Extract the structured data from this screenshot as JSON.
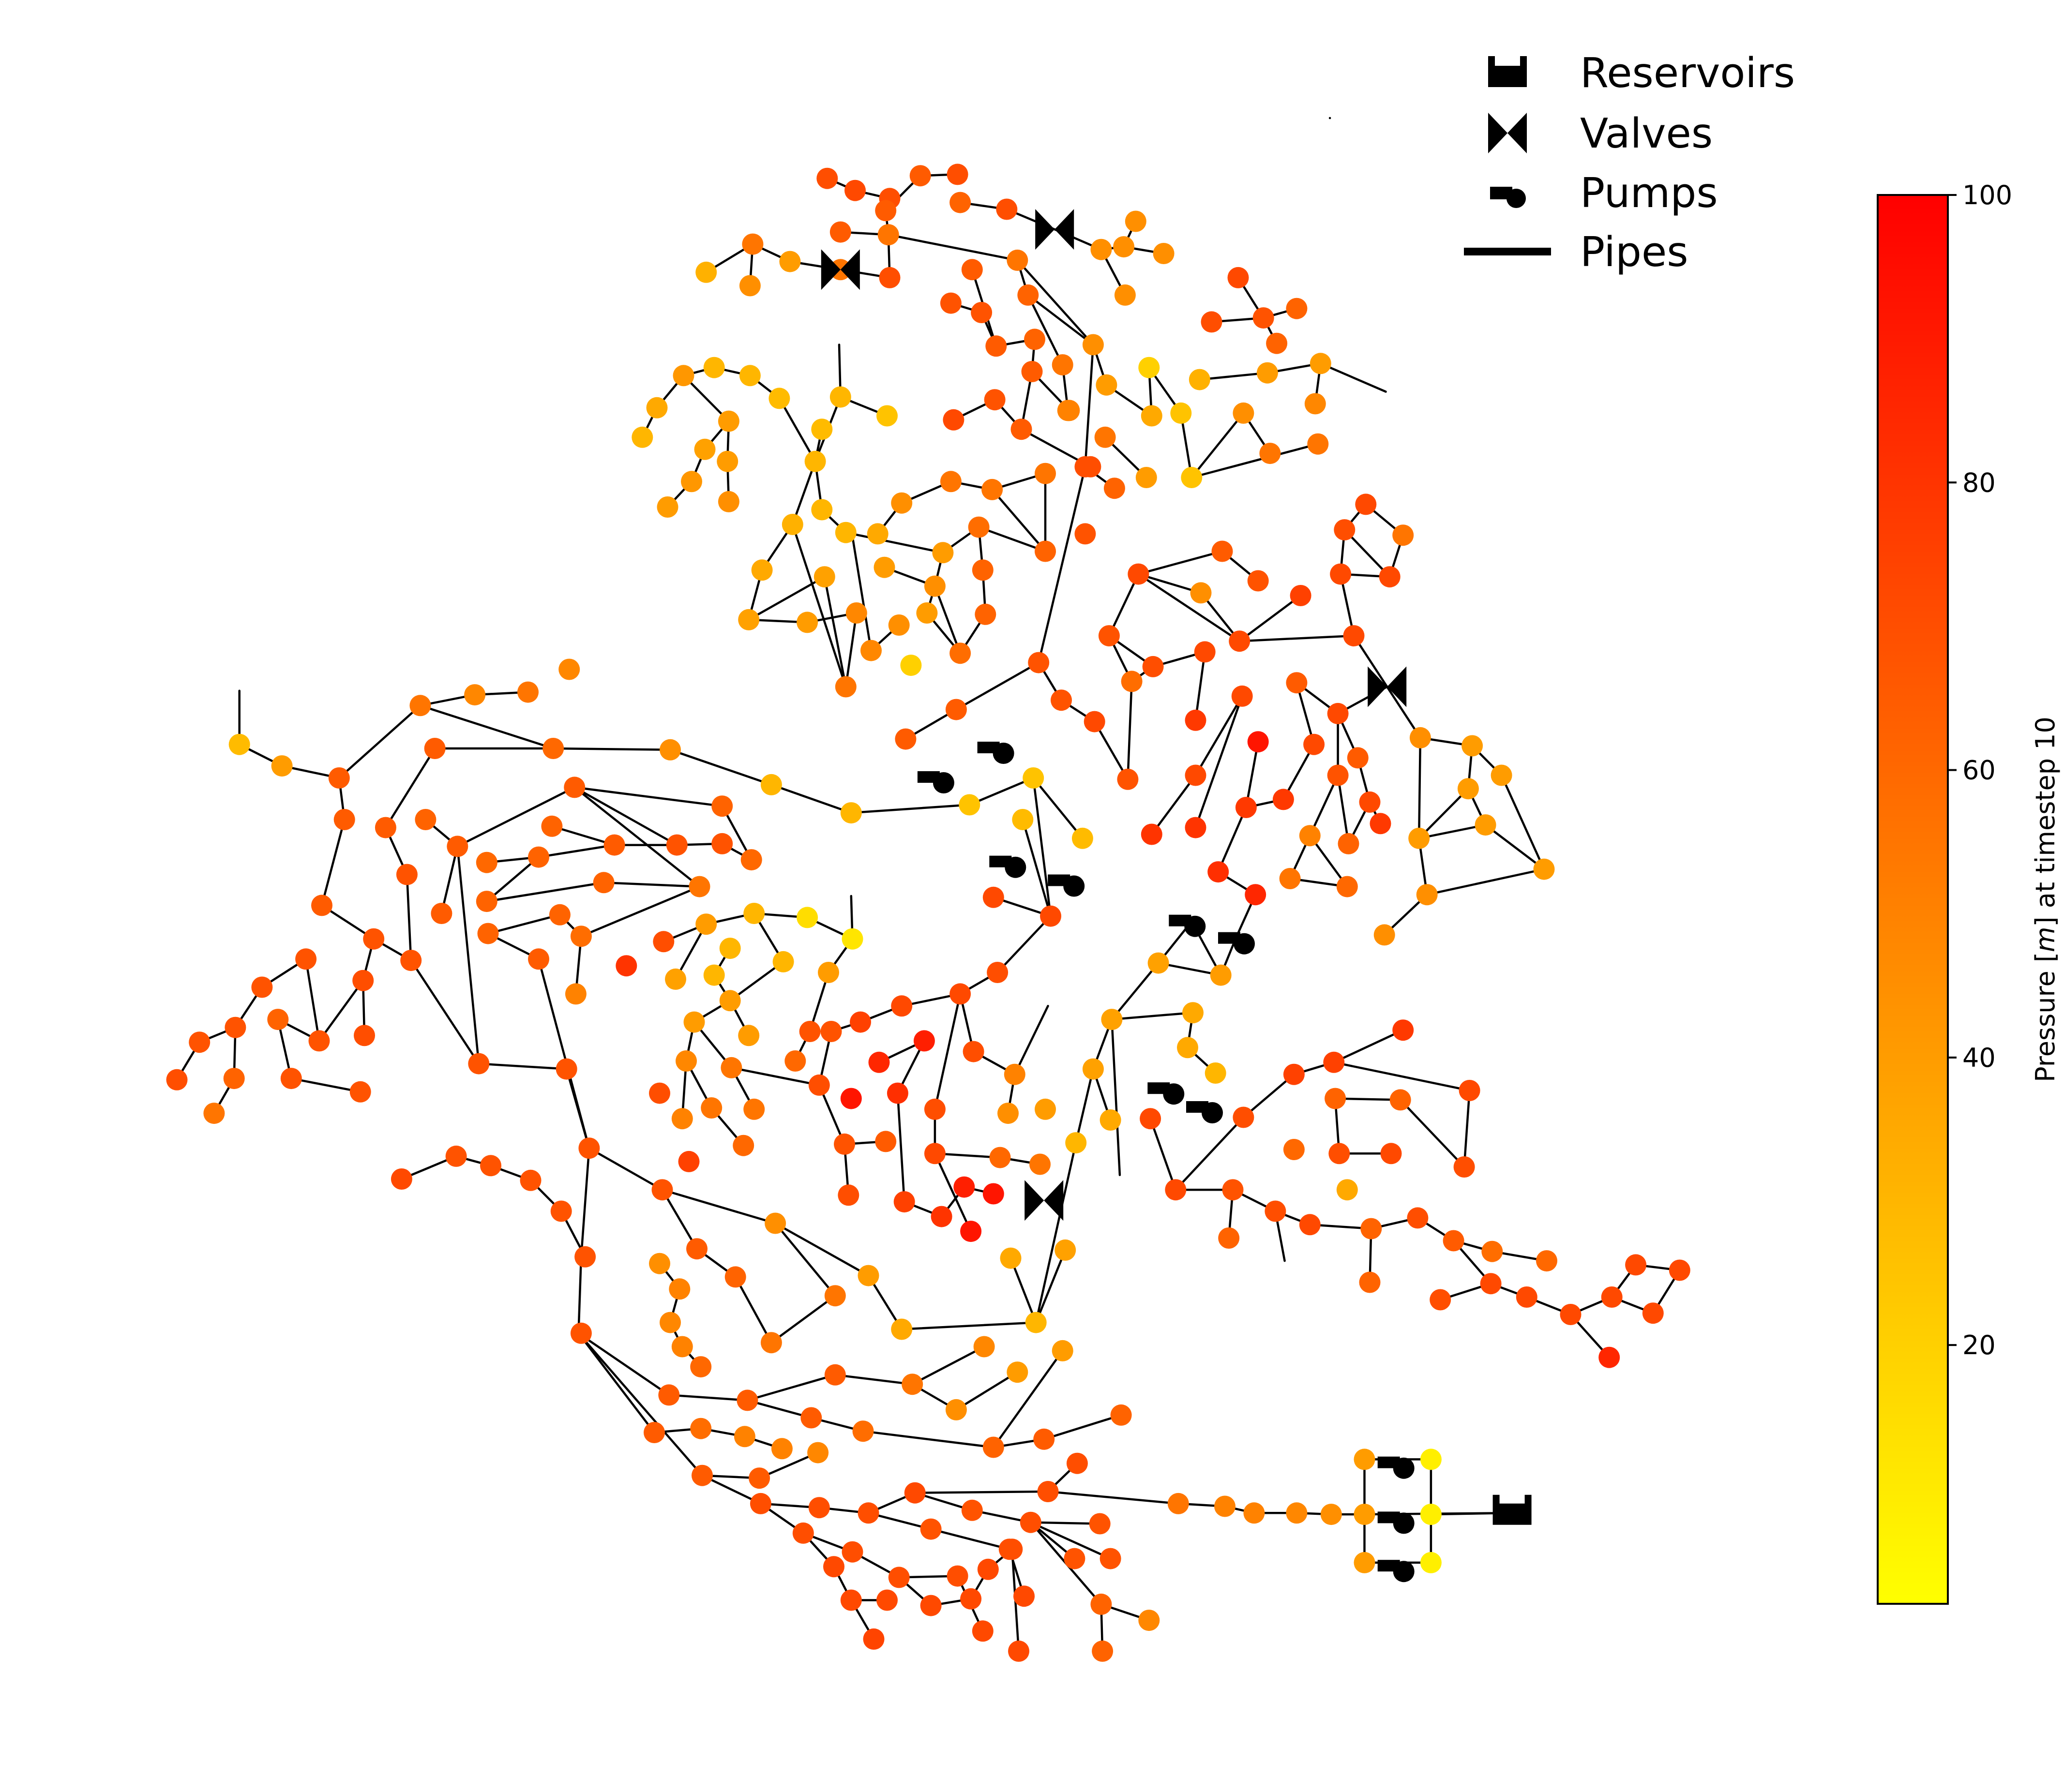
{
  "legend": {
    "items": [
      {
        "label": "Reservoirs",
        "icon": "reservoir-icon"
      },
      {
        "label": "Valves",
        "icon": "valve-icon"
      },
      {
        "label": "Pumps",
        "icon": "pump-icon"
      },
      {
        "label": "Pipes",
        "icon": "pipe-line-icon"
      }
    ]
  },
  "colorbar": {
    "title": "Pressure [m] at timestep 10",
    "title_parts": [
      "Pressure [",
      "m",
      "] at timestep 10"
    ],
    "min": 2,
    "max": 100,
    "ticks": [
      {
        "value": 20,
        "label": "20"
      },
      {
        "value": 40,
        "label": "40"
      },
      {
        "value": 60,
        "label": "60"
      },
      {
        "value": 80,
        "label": "80"
      },
      {
        "value": 100,
        "label": "100"
      }
    ],
    "colormap": "autumn_r",
    "colors": {
      "low": "#ffff00",
      "high": "#ff0000"
    }
  }
}
